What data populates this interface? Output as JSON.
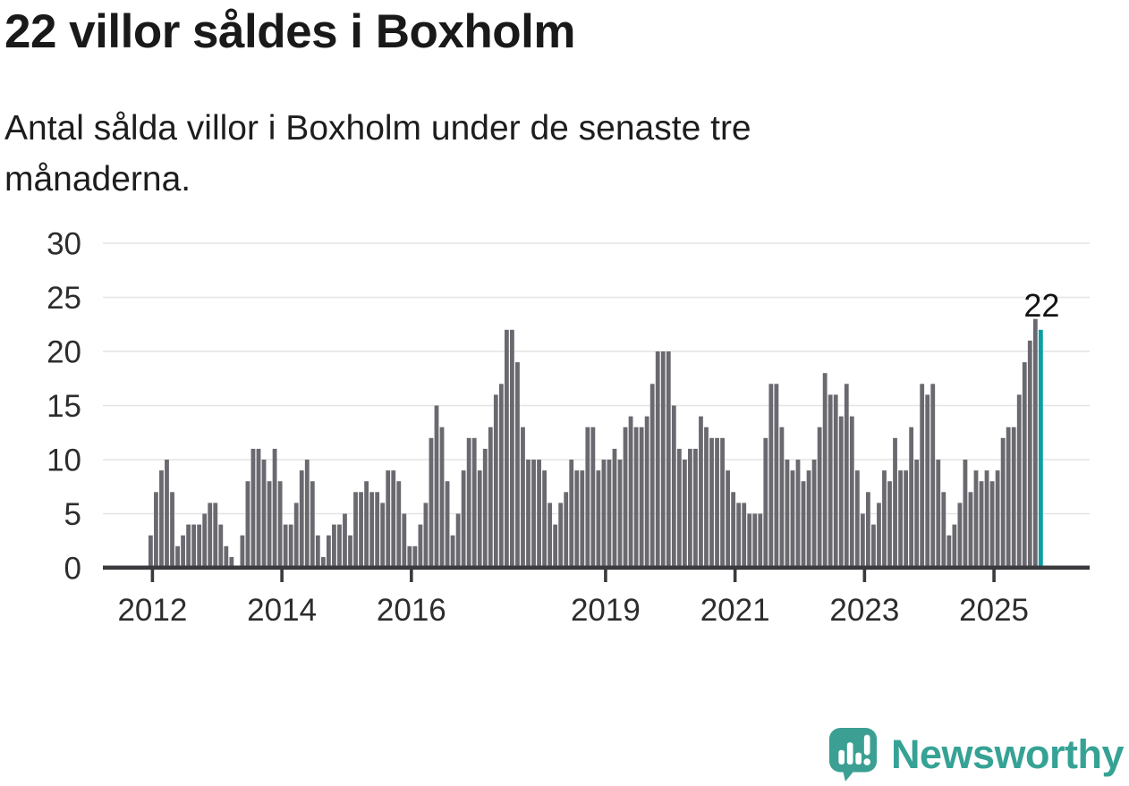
{
  "header": {
    "title": "22 villor såldes i Boxholm",
    "subtitle": "Antal sålda villor i Boxholm under de senaste tre månaderna.",
    "subtitle_lines": [
      "Antal sålda villor i Boxholm under de senaste tre",
      "månaderna."
    ]
  },
  "chart_data": {
    "type": "bar",
    "title": "22 villor såldes i Boxholm",
    "subtitle": "Antal sålda villor i Boxholm under de senaste tre månaderna.",
    "xlabel": "",
    "ylabel": "",
    "frequency": "monthly",
    "x_start_label": "2012",
    "values": [
      3,
      7,
      9,
      10,
      7,
      2,
      3,
      4,
      4,
      4,
      5,
      6,
      6,
      4,
      2,
      1,
      0,
      3,
      8,
      11,
      11,
      10,
      8,
      11,
      8,
      4,
      4,
      6,
      9,
      10,
      8,
      3,
      1,
      3,
      4,
      4,
      5,
      3,
      7,
      7,
      8,
      7,
      7,
      6,
      9,
      9,
      8,
      5,
      2,
      2,
      4,
      6,
      12,
      15,
      13,
      8,
      3,
      5,
      9,
      12,
      12,
      9,
      11,
      13,
      16,
      17,
      22,
      22,
      19,
      13,
      10,
      10,
      10,
      9,
      6,
      4,
      6,
      7,
      10,
      9,
      9,
      13,
      13,
      9,
      10,
      10,
      11,
      10,
      13,
      14,
      13,
      13,
      14,
      17,
      20,
      20,
      20,
      15,
      11,
      10,
      11,
      11,
      14,
      13,
      12,
      12,
      12,
      9,
      7,
      6,
      6,
      5,
      5,
      5,
      12,
      17,
      17,
      13,
      10,
      9,
      10,
      8,
      9,
      10,
      13,
      18,
      16,
      16,
      14,
      17,
      14,
      9,
      5,
      7,
      4,
      6,
      9,
      8,
      12,
      9,
      9,
      13,
      10,
      17,
      16,
      17,
      10,
      7,
      3,
      4,
      6,
      10,
      7,
      9,
      8,
      9,
      8,
      9,
      12,
      13,
      13,
      16,
      19,
      21,
      23,
      22
    ],
    "x_tick_labels": [
      "2012",
      "2014",
      "2016",
      "2019",
      "2021",
      "2023",
      "2025"
    ],
    "x_tick_indices": [
      0,
      24,
      48,
      84,
      108,
      132,
      156
    ],
    "y_ticks": [
      0,
      5,
      10,
      15,
      20,
      25,
      30
    ],
    "ylim": [
      0,
      30
    ],
    "grid": true,
    "legend": "none",
    "highlight_index": 165,
    "highlight_value": 22,
    "highlight_label": "22",
    "bar_color": "#69696f",
    "highlight_color": "#0a9fa4",
    "axis_color": "#3a3a3e",
    "grid_color": "#e4e4e4",
    "label_color": "#2d2d30"
  },
  "footer": {
    "brand": "Newsworthy",
    "brand_color": "#36a295",
    "logo_icon": "speech-bubble-bar-chart-exclamation"
  }
}
